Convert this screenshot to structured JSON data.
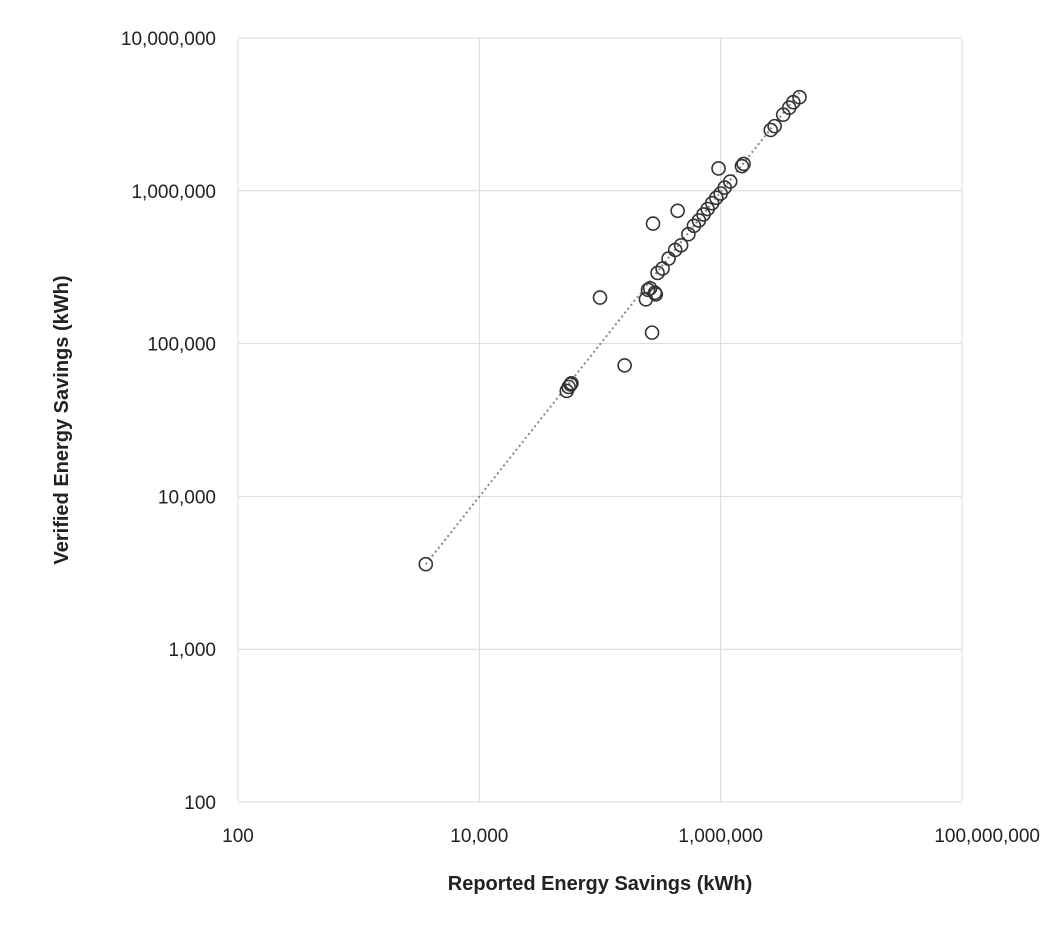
{
  "chart_data": {
    "type": "scatter",
    "title": "",
    "xlabel": "Reported Energy Savings (kWh)",
    "ylabel": "Verified Energy Savings (kWh)",
    "x_scale": "log",
    "y_scale": "log",
    "xlim": [
      100,
      100000000
    ],
    "ylim": [
      100,
      10000000
    ],
    "x_ticks": [
      100,
      10000,
      1000000,
      100000000
    ],
    "x_tick_labels": [
      "100",
      "10,000",
      "1,000,000",
      "100,000,000"
    ],
    "y_ticks": [
      100,
      1000,
      10000,
      100000,
      1000000,
      10000000
    ],
    "y_tick_labels": [
      "100",
      "1,000",
      "10,000",
      "100,000",
      "1,000,000",
      "10,000,000"
    ],
    "grid": true,
    "legend": "none",
    "marker": "open-circle",
    "marker_color": "#333333",
    "trendline": {
      "style": "dotted",
      "color": "#888888",
      "from": [
        3600,
        3600
      ],
      "to": [
        4500000,
        4400000
      ]
    },
    "series": [
      {
        "points": [
          [
            3600,
            3600
          ],
          [
            53000,
            49000
          ],
          [
            55000,
            52000
          ],
          [
            57000,
            54000
          ],
          [
            58000,
            55000
          ],
          [
            100000,
            200000
          ],
          [
            160000,
            72000
          ],
          [
            240000,
            195000
          ],
          [
            250000,
            225000
          ],
          [
            260000,
            230000
          ],
          [
            270000,
            118000
          ],
          [
            275000,
            610000
          ],
          [
            285000,
            215000
          ],
          [
            290000,
            210000
          ],
          [
            300000,
            290000
          ],
          [
            330000,
            310000
          ],
          [
            370000,
            360000
          ],
          [
            420000,
            410000
          ],
          [
            440000,
            740000
          ],
          [
            470000,
            440000
          ],
          [
            540000,
            520000
          ],
          [
            600000,
            590000
          ],
          [
            660000,
            640000
          ],
          [
            720000,
            700000
          ],
          [
            780000,
            760000
          ],
          [
            850000,
            830000
          ],
          [
            920000,
            900000
          ],
          [
            960000,
            1400000
          ],
          [
            1000000,
            960000
          ],
          [
            1080000,
            1050000
          ],
          [
            1200000,
            1150000
          ],
          [
            1500000,
            1450000
          ],
          [
            1550000,
            1500000
          ],
          [
            2600000,
            2500000
          ],
          [
            2800000,
            2650000
          ],
          [
            3300000,
            3150000
          ],
          [
            3700000,
            3500000
          ],
          [
            4000000,
            3800000
          ],
          [
            4500000,
            4100000
          ]
        ]
      }
    ]
  }
}
